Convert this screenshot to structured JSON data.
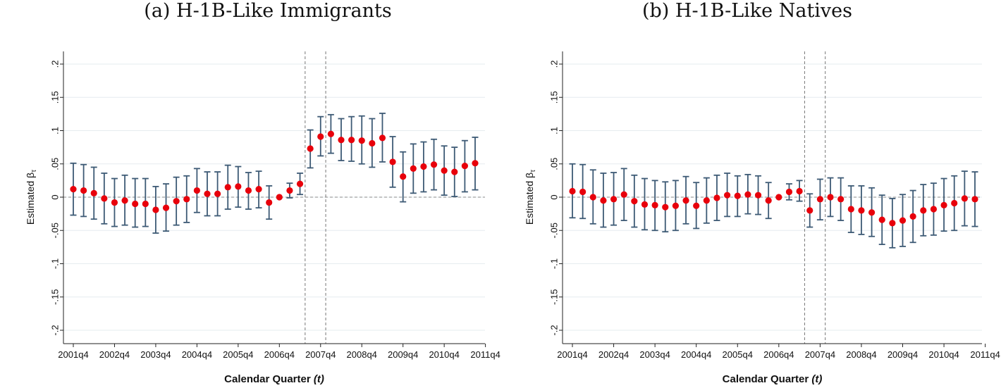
{
  "chart_data": [
    {
      "type": "scatter",
      "title": "(a) H-1B-Like Immigrants",
      "xlabel": "Calendar Quarter",
      "xlabel_var": "(t)",
      "ylabel": "Estimated β",
      "ylabel_sub": "τ",
      "ylim": [
        -0.2,
        0.2
      ],
      "y_ticks": [
        0.2,
        0.15,
        0.1,
        0.05,
        0,
        -0.05,
        -0.1,
        -0.15,
        -0.2
      ],
      "y_tick_labels": [
        ".2",
        ".15",
        ".1",
        ".05",
        "0",
        "-.05",
        "-.1",
        "-.15",
        "-.2"
      ],
      "x_tick_labels": [
        "2001q4",
        "2002q4",
        "2003q4",
        "2004q4",
        "2005q4",
        "2006q4",
        "2007q4",
        "2008q4",
        "2009q4",
        "2010q4",
        "2011q4"
      ],
      "grid": true,
      "point_color": "#e8000b",
      "ci_color": "#3d5a75",
      "vertical_lines_after_index": [
        22.5,
        24.5
      ],
      "estimates": [
        0.012,
        0.01,
        0.006,
        -0.002,
        -0.008,
        -0.005,
        -0.01,
        -0.01,
        -0.019,
        -0.016,
        -0.006,
        -0.003,
        0.01,
        0.005,
        0.005,
        0.015,
        0.016,
        0.01,
        0.012,
        -0.008,
        0.0,
        0.01,
        0.02,
        0.073,
        0.091,
        0.095,
        0.086,
        0.086,
        0.085,
        0.081,
        0.089,
        0.053,
        0.031,
        0.043,
        0.046,
        0.049,
        0.04,
        0.038,
        0.047,
        0.051
      ],
      "ci_low": [
        -0.027,
        -0.029,
        -0.033,
        -0.04,
        -0.044,
        -0.042,
        -0.045,
        -0.044,
        -0.054,
        -0.051,
        -0.042,
        -0.038,
        -0.023,
        -0.028,
        -0.028,
        -0.018,
        -0.015,
        -0.018,
        -0.016,
        -0.033,
        0.0,
        -0.001,
        0.004,
        0.044,
        0.062,
        0.066,
        0.055,
        0.054,
        0.05,
        0.045,
        0.053,
        0.015,
        -0.007,
        0.006,
        0.008,
        0.011,
        0.003,
        0.001,
        0.008,
        0.011
      ],
      "ci_high": [
        0.051,
        0.049,
        0.045,
        0.036,
        0.028,
        0.033,
        0.028,
        0.028,
        0.016,
        0.02,
        0.03,
        0.032,
        0.043,
        0.038,
        0.038,
        0.048,
        0.046,
        0.037,
        0.039,
        0.017,
        0.0,
        0.021,
        0.036,
        0.101,
        0.121,
        0.124,
        0.118,
        0.121,
        0.122,
        0.118,
        0.126,
        0.091,
        0.068,
        0.08,
        0.083,
        0.087,
        0.077,
        0.075,
        0.085,
        0.09
      ]
    },
    {
      "type": "scatter",
      "title": "(b) H-1B-Like Natives",
      "xlabel": "Calendar Quarter",
      "xlabel_var": "(t)",
      "ylabel": "Estimated β",
      "ylabel_sub": "τ",
      "ylim": [
        -0.2,
        0.2
      ],
      "y_ticks": [
        0.2,
        0.15,
        0.1,
        0.05,
        0,
        -0.05,
        -0.1,
        -0.15,
        -0.2
      ],
      "y_tick_labels": [
        ".2",
        ".15",
        ".1",
        ".05",
        "0",
        "-.05",
        "-.1",
        "-.15",
        "-.2"
      ],
      "x_tick_labels": [
        "2001q4",
        "2002q4",
        "2003q4",
        "2004q4",
        "2005q4",
        "2006q4",
        "2007q4",
        "2008q4",
        "2009q4",
        "2010q4",
        "2011q4"
      ],
      "grid": true,
      "point_color": "#e8000b",
      "ci_color": "#3d5a75",
      "vertical_lines_after_index": [
        22.5,
        24.5
      ],
      "estimates": [
        0.009,
        0.008,
        0.0,
        -0.005,
        -0.003,
        0.004,
        -0.006,
        -0.011,
        -0.012,
        -0.015,
        -0.013,
        -0.005,
        -0.013,
        -0.005,
        -0.001,
        0.003,
        0.002,
        0.004,
        0.003,
        -0.005,
        0.0,
        0.008,
        0.009,
        -0.02,
        -0.003,
        0.0,
        -0.003,
        -0.018,
        -0.02,
        -0.023,
        -0.034,
        -0.039,
        -0.035,
        -0.029,
        -0.02,
        -0.018,
        -0.012,
        -0.009,
        -0.002,
        -0.003
      ],
      "ci_low": [
        -0.031,
        -0.032,
        -0.04,
        -0.045,
        -0.042,
        -0.035,
        -0.045,
        -0.049,
        -0.05,
        -0.052,
        -0.05,
        -0.04,
        -0.047,
        -0.039,
        -0.035,
        -0.029,
        -0.029,
        -0.025,
        -0.026,
        -0.032,
        0.0,
        -0.004,
        -0.006,
        -0.045,
        -0.034,
        -0.029,
        -0.035,
        -0.053,
        -0.056,
        -0.059,
        -0.071,
        -0.076,
        -0.074,
        -0.068,
        -0.058,
        -0.057,
        -0.051,
        -0.05,
        -0.043,
        -0.044
      ],
      "ci_high": [
        0.05,
        0.049,
        0.041,
        0.036,
        0.037,
        0.043,
        0.033,
        0.028,
        0.025,
        0.023,
        0.025,
        0.031,
        0.022,
        0.029,
        0.033,
        0.036,
        0.032,
        0.034,
        0.032,
        0.022,
        0.0,
        0.02,
        0.025,
        0.005,
        0.027,
        0.029,
        0.029,
        0.017,
        0.017,
        0.014,
        0.003,
        -0.002,
        0.004,
        0.01,
        0.019,
        0.021,
        0.028,
        0.032,
        0.039,
        0.038
      ]
    }
  ]
}
